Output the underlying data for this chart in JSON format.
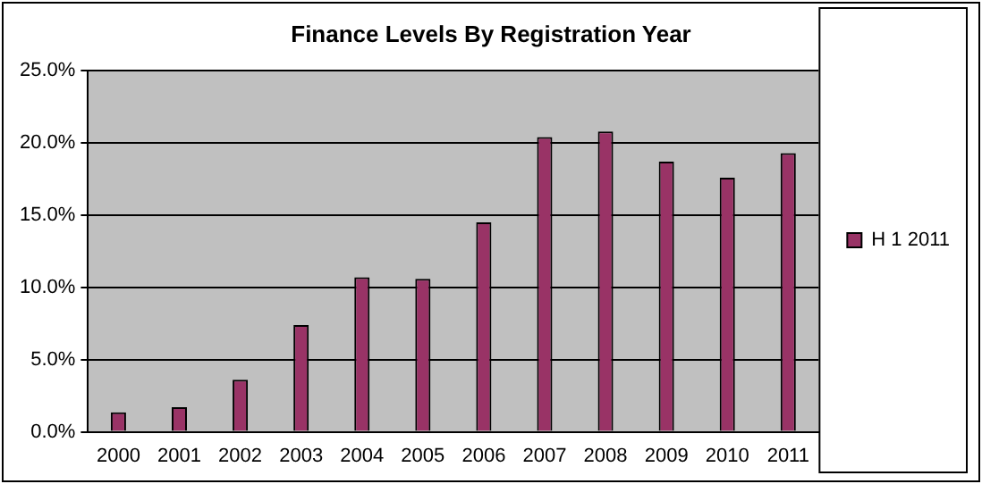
{
  "chart_data": {
    "type": "bar",
    "title": "Finance Levels By Registration Year",
    "categories": [
      "2000",
      "2001",
      "2002",
      "2003",
      "2004",
      "2005",
      "2006",
      "2007",
      "2008",
      "2009",
      "2010",
      "2011"
    ],
    "series": [
      {
        "name": "H 1 2011",
        "color": "#993366",
        "values": [
          1.35,
          1.7,
          3.6,
          7.4,
          10.7,
          10.6,
          14.5,
          20.4,
          20.8,
          18.7,
          17.6,
          19.3
        ]
      }
    ],
    "ylim": [
      0,
      25
    ],
    "yticks": [
      {
        "value": 0,
        "label": "0.0%"
      },
      {
        "value": 5,
        "label": "5.0%"
      },
      {
        "value": 10,
        "label": "10.0%"
      },
      {
        "value": 15,
        "label": "15.0%"
      },
      {
        "value": 20,
        "label": "20.0%"
      },
      {
        "value": 25,
        "label": "25.0%"
      }
    ],
    "grid": "y",
    "legend": "right"
  }
}
